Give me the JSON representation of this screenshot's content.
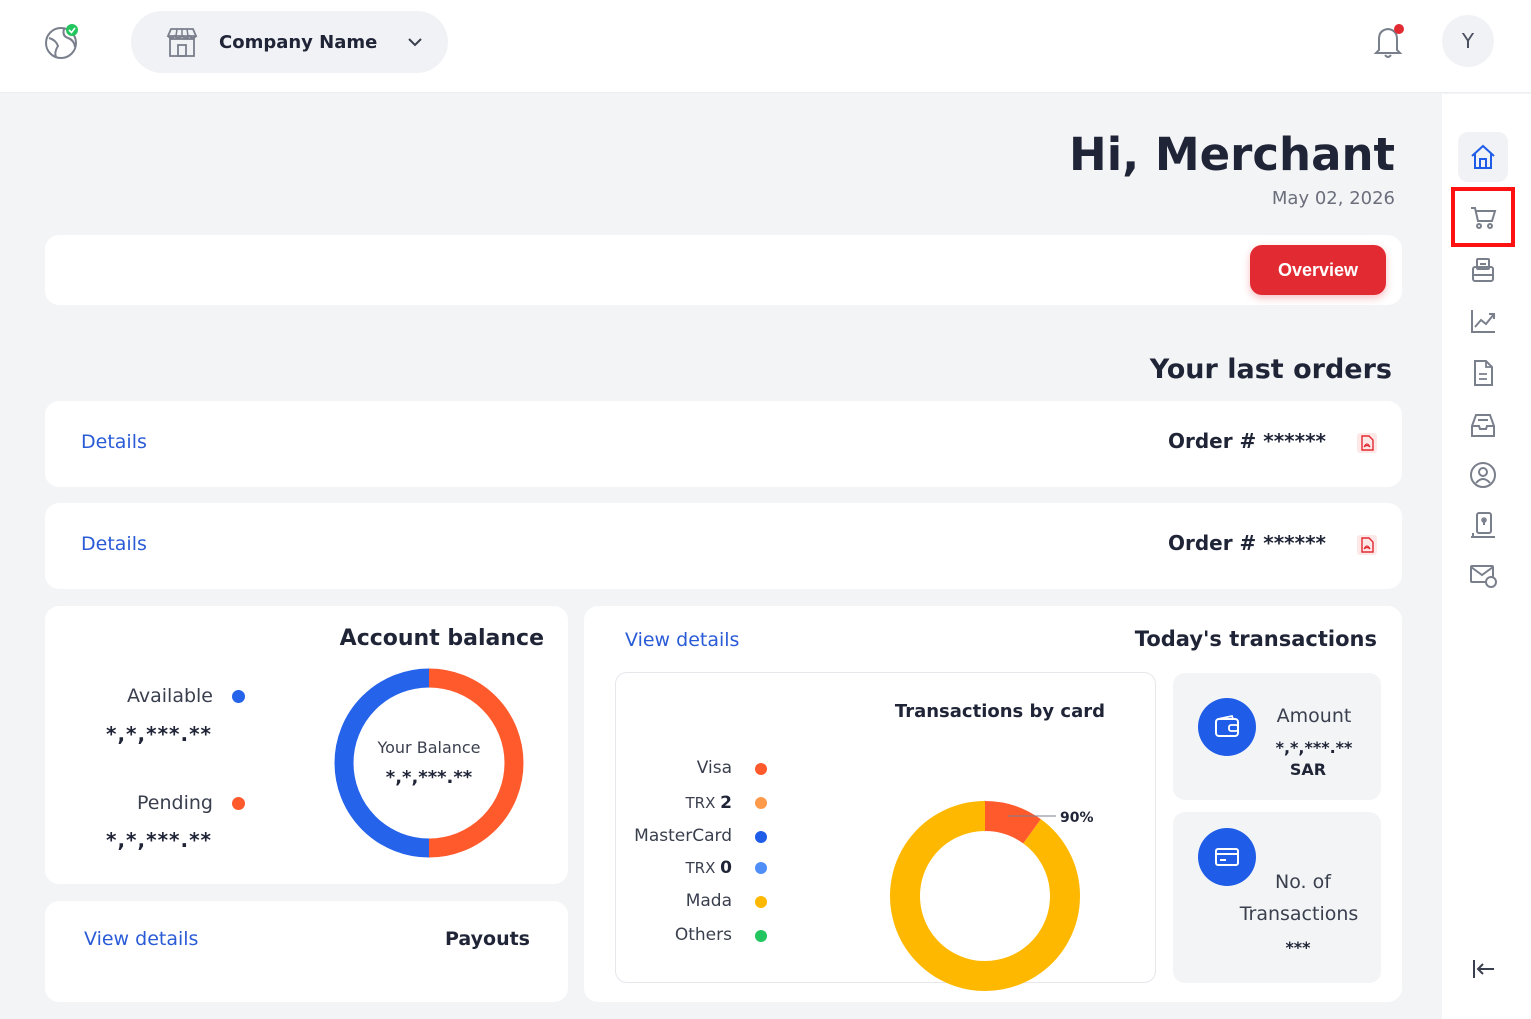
{
  "header": {
    "company_name": "Company Name",
    "avatar_letter": "Y",
    "notification_dot_color": "#e22a33"
  },
  "greeting": {
    "title": "Hi, Merchant",
    "date": "May 02, 2026"
  },
  "overview_button": "Overview",
  "orders": {
    "title": "Your last orders",
    "items": [
      {
        "details_label": "Details",
        "order_label": "Order # ******"
      },
      {
        "details_label": "Details",
        "order_label": "Order # ******"
      }
    ]
  },
  "account_balance": {
    "title": "Account balance",
    "available_label": "Available",
    "available_value": "*,*,***.**",
    "pending_label": "Pending",
    "pending_value": "*,*,***.**",
    "center_label": "Your Balance",
    "center_value": "*,*,***.**",
    "colors": {
      "available": "#2563eb",
      "pending": "#ff5a2c"
    }
  },
  "payouts": {
    "title": "Payouts",
    "link": "View details"
  },
  "todays_transactions": {
    "title": "Today's transactions",
    "link": "View details",
    "chart_title": "Transactions by card",
    "legend": [
      {
        "label": "Visa",
        "color": "#ff5a2c"
      },
      {
        "label_prefix": "TRX",
        "label_value": "2",
        "color": "#ff9a4a"
      },
      {
        "label": "MasterCard",
        "color": "#1f5de8"
      },
      {
        "label_prefix": "TRX",
        "label_value": "0",
        "color": "#4f8ef7"
      },
      {
        "label": "Mada",
        "color": "#ffb800"
      },
      {
        "label": "Others",
        "color": "#22c55e"
      }
    ],
    "donut_label": "90%",
    "amount_label": "Amount",
    "amount_value": "*,*,***.**",
    "amount_currency": "SAR",
    "count_label_line1": "No. of",
    "count_label_line2": "Transactions",
    "count_value": "***"
  },
  "chart_data": [
    {
      "type": "pie",
      "title": "",
      "categories": [
        "Available",
        "Pending"
      ],
      "values": [
        50,
        50
      ],
      "colors": [
        "#2563eb",
        "#ff5a2c"
      ],
      "center_text": "Your Balance"
    },
    {
      "type": "pie",
      "title": "Transactions by card",
      "categories": [
        "Mada",
        "Visa"
      ],
      "values": [
        90,
        10
      ],
      "colors": [
        "#ffb800",
        "#ff5a2c"
      ],
      "annotations": [
        "90%"
      ]
    }
  ],
  "sidebar": {
    "items": [
      {
        "icon": "home-icon",
        "active": true
      },
      {
        "icon": "cart-icon",
        "active": false
      },
      {
        "icon": "payment-terminal-icon",
        "active": false
      },
      {
        "icon": "analytics-chart-icon",
        "active": false
      },
      {
        "icon": "document-icon",
        "active": false
      },
      {
        "icon": "inbox-tray-icon",
        "active": false
      },
      {
        "icon": "user-circle-icon",
        "active": false
      },
      {
        "icon": "mobile-payment-icon",
        "active": false
      },
      {
        "icon": "mail-settings-icon",
        "active": false
      }
    ],
    "accent_color": "#1f5de8"
  }
}
